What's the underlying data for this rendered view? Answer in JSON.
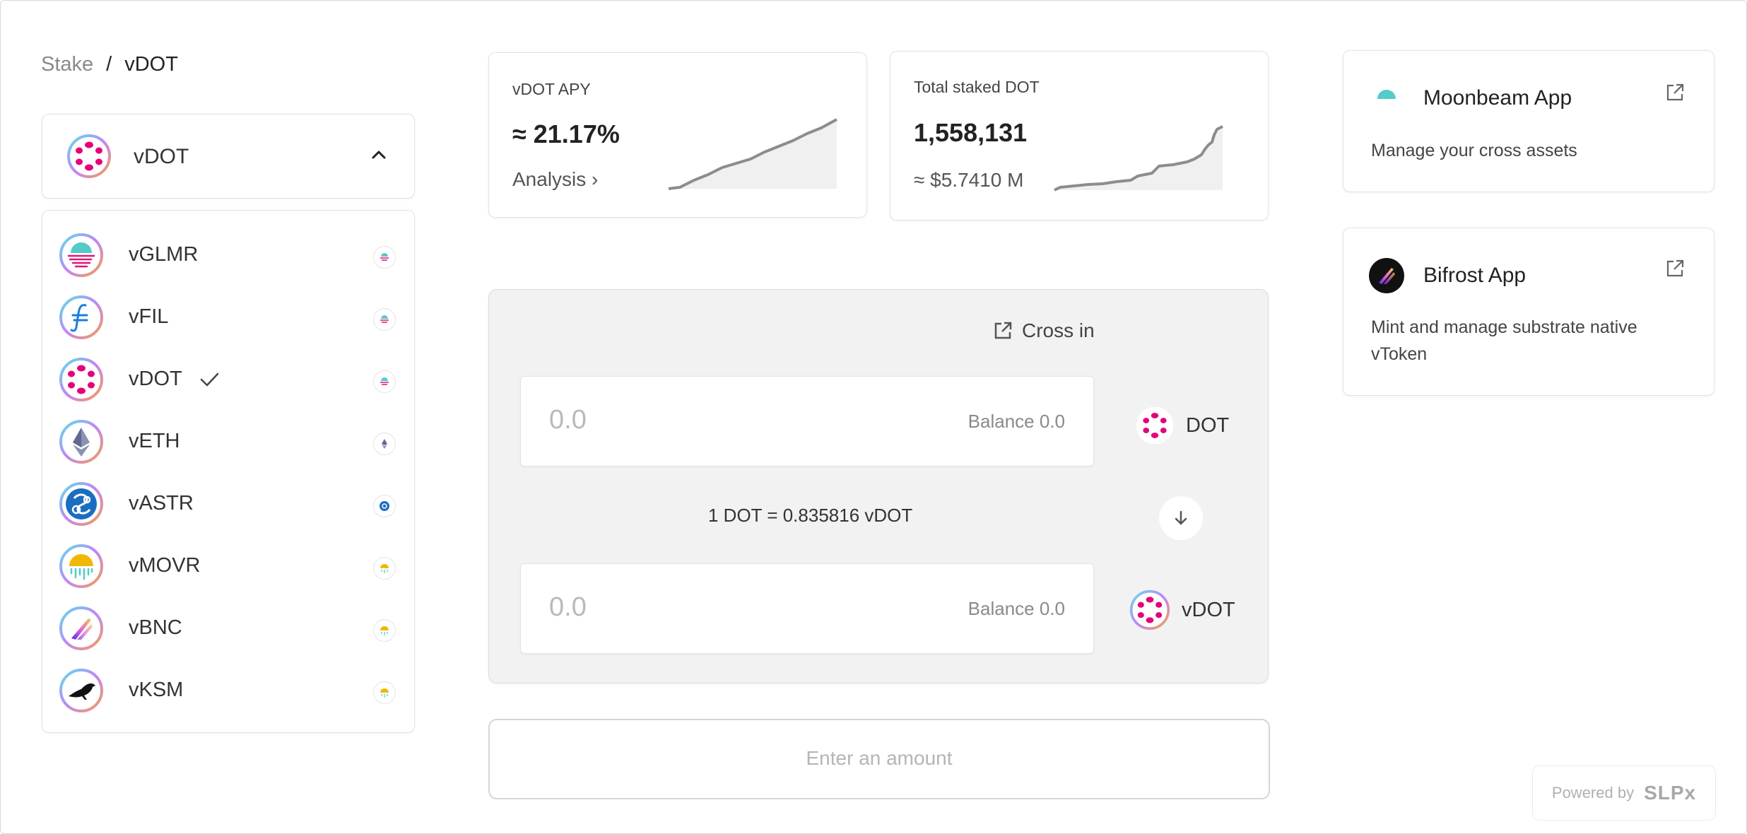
{
  "breadcrumb": {
    "parent": "Stake",
    "separator": "/",
    "current": "vDOT"
  },
  "token_select": {
    "selected": "vDOT"
  },
  "token_list": [
    {
      "label": "vGLMR",
      "icon": "glmr-icon",
      "chain_icon": "moonbeam-icon",
      "selected": false
    },
    {
      "label": "vFIL",
      "icon": "filecoin-icon",
      "chain_icon": "moonbeam-icon",
      "selected": false
    },
    {
      "label": "vDOT",
      "icon": "polkadot-icon",
      "chain_icon": "moonbeam-icon",
      "selected": true
    },
    {
      "label": "vETH",
      "icon": "ethereum-icon",
      "chain_icon": "ethereum-icon",
      "selected": false
    },
    {
      "label": "vASTR",
      "icon": "astar-icon",
      "chain_icon": "astar-icon",
      "selected": false
    },
    {
      "label": "vMOVR",
      "icon": "moonriver-icon",
      "chain_icon": "moonriver-icon",
      "selected": false
    },
    {
      "label": "vBNC",
      "icon": "bifrost-icon",
      "chain_icon": "moonriver-icon",
      "selected": false
    },
    {
      "label": "vKSM",
      "icon": "kusama-icon",
      "chain_icon": "moonriver-icon",
      "selected": false
    }
  ],
  "stats": {
    "apy": {
      "title": "vDOT APY",
      "value": "≈ 21.17%",
      "link": "Analysis ›"
    },
    "staked": {
      "title": "Total staked DOT",
      "value": "1,558,131",
      "usd": "≈ $5.7410 M"
    }
  },
  "swap": {
    "cross_in": "Cross in",
    "from": {
      "amount": "0.0",
      "balance": "Balance 0.0",
      "token": "DOT"
    },
    "rate": "1 DOT = 0.835816 vDOT",
    "to": {
      "amount": "0.0",
      "balance": "Balance 0.0",
      "token": "vDOT"
    },
    "submit": "Enter an amount"
  },
  "apps": [
    {
      "name": "Moonbeam App",
      "description": "Manage your cross assets",
      "icon": "moonbeam-icon"
    },
    {
      "name": "Bifrost App",
      "description": "Mint and manage substrate native vToken",
      "icon": "bifrost-icon"
    }
  ],
  "footer": {
    "powered_by": "Powered by",
    "brand": "SLPx"
  },
  "colors": {
    "polkadot": "#e6007a",
    "accent_gradient_start": "#5ce1e6",
    "accent_gradient_end": "#f6a04d",
    "chart_line": "#8c8c8c",
    "chart_fill": "#f0f0f0"
  }
}
